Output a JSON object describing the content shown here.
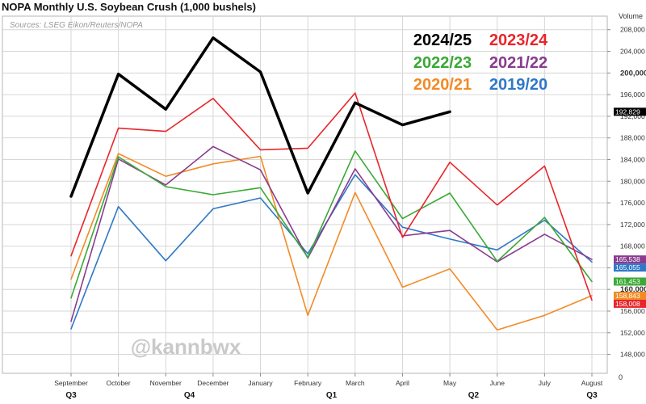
{
  "title": "NOPA Monthly U.S. Soybean Crush (1,000 bushels)",
  "source": "Sources: LSEG Eikon/Reuters/NOPA",
  "watermark": "@kannbwx",
  "chart_data": {
    "type": "line",
    "ylabel": "Volume",
    "ylim": [
      144500,
      210500
    ],
    "yticks": [
      148000,
      152000,
      156000,
      160000,
      164000,
      168000,
      172000,
      176000,
      180000,
      184000,
      188000,
      192000,
      196000,
      200000,
      204000,
      208000
    ],
    "ytick_labels": [
      "148,000",
      "152,000",
      "156,000",
      "160,000",
      "164,000",
      "168,000",
      "172,000",
      "176,000",
      "180,000",
      "184,000",
      "188,000",
      "192,000",
      "196,000",
      "200,000",
      "204,000",
      "208,000"
    ],
    "zero_label": "0",
    "categories": [
      "September",
      "October",
      "November",
      "December",
      "January",
      "February",
      "March",
      "April",
      "May",
      "June",
      "July",
      "August"
    ],
    "quarter_labels": [
      {
        "label": "Q3",
        "at": 0
      },
      {
        "label": "Q4",
        "at": 2.5
      },
      {
        "label": "Q1",
        "at": 5.5
      },
      {
        "label": "Q2",
        "at": 8.5
      },
      {
        "label": "Q3",
        "at": 11
      }
    ],
    "series": [
      {
        "name": "2024/25",
        "color": "#000000",
        "width": 3.5,
        "values": [
          177200,
          199800,
          193300,
          206500,
          200200,
          177800,
          194500,
          190400,
          192829,
          null,
          null,
          null
        ]
      },
      {
        "name": "2023/24",
        "color": "#e8262b",
        "width": 1.6,
        "values": [
          166200,
          189800,
          189200,
          195300,
          185800,
          186100,
          196300,
          169600,
          183500,
          175600,
          182800,
          158008
        ]
      },
      {
        "name": "2022/23",
        "color": "#3aa935",
        "width": 1.6,
        "values": [
          158400,
          184500,
          179000,
          177500,
          178800,
          165900,
          185600,
          173100,
          177800,
          165200,
          173300,
          161453
        ]
      },
      {
        "name": "2021/22",
        "color": "#8a3b8f",
        "width": 1.6,
        "values": [
          154100,
          184100,
          179300,
          186400,
          182100,
          165800,
          182300,
          169900,
          170900,
          165100,
          170200,
          165538
        ]
      },
      {
        "name": "2020/21",
        "color": "#f28b25",
        "width": 1.6,
        "values": [
          161900,
          185100,
          180900,
          183200,
          184600,
          155200,
          177900,
          160400,
          163800,
          152500,
          155200,
          158843
        ]
      },
      {
        "name": "2019/20",
        "color": "#2f78c7",
        "width": 1.6,
        "values": [
          152700,
          175300,
          165300,
          174900,
          176900,
          166600,
          181200,
          171500,
          169300,
          167300,
          172800,
          165055
        ]
      }
    ],
    "end_labels": [
      {
        "text": "192,829",
        "value": 192829,
        "bg": "#000000",
        "fg": "#ffffff"
      },
      {
        "text": "165,538",
        "value": 165538,
        "bg": "#8a3b8f",
        "fg": "#ffffff"
      },
      {
        "text": "165,055",
        "value": 165055,
        "bg": "#2f78c7",
        "fg": "#ffffff"
      },
      {
        "text": "161,453",
        "value": 161453,
        "bg": "#3aa935",
        "fg": "#ffffff"
      },
      {
        "text": "158,843",
        "value": 158843,
        "bg": "#f28b25",
        "fg": "#ffffff"
      },
      {
        "text": "158,008",
        "value": 158008,
        "bg": "#e8262b",
        "fg": "#ffffff"
      }
    ],
    "legend": [
      {
        "text": "2024/25",
        "color": "#000000"
      },
      {
        "text": "2023/24",
        "color": "#e8262b"
      },
      {
        "text": "2022/23",
        "color": "#3aa935"
      },
      {
        "text": "2021/22",
        "color": "#8a3b8f"
      },
      {
        "text": "2020/21",
        "color": "#f28b25"
      },
      {
        "text": "2019/20",
        "color": "#2f78c7"
      }
    ],
    "legend_position": "top-right",
    "grid": true
  }
}
